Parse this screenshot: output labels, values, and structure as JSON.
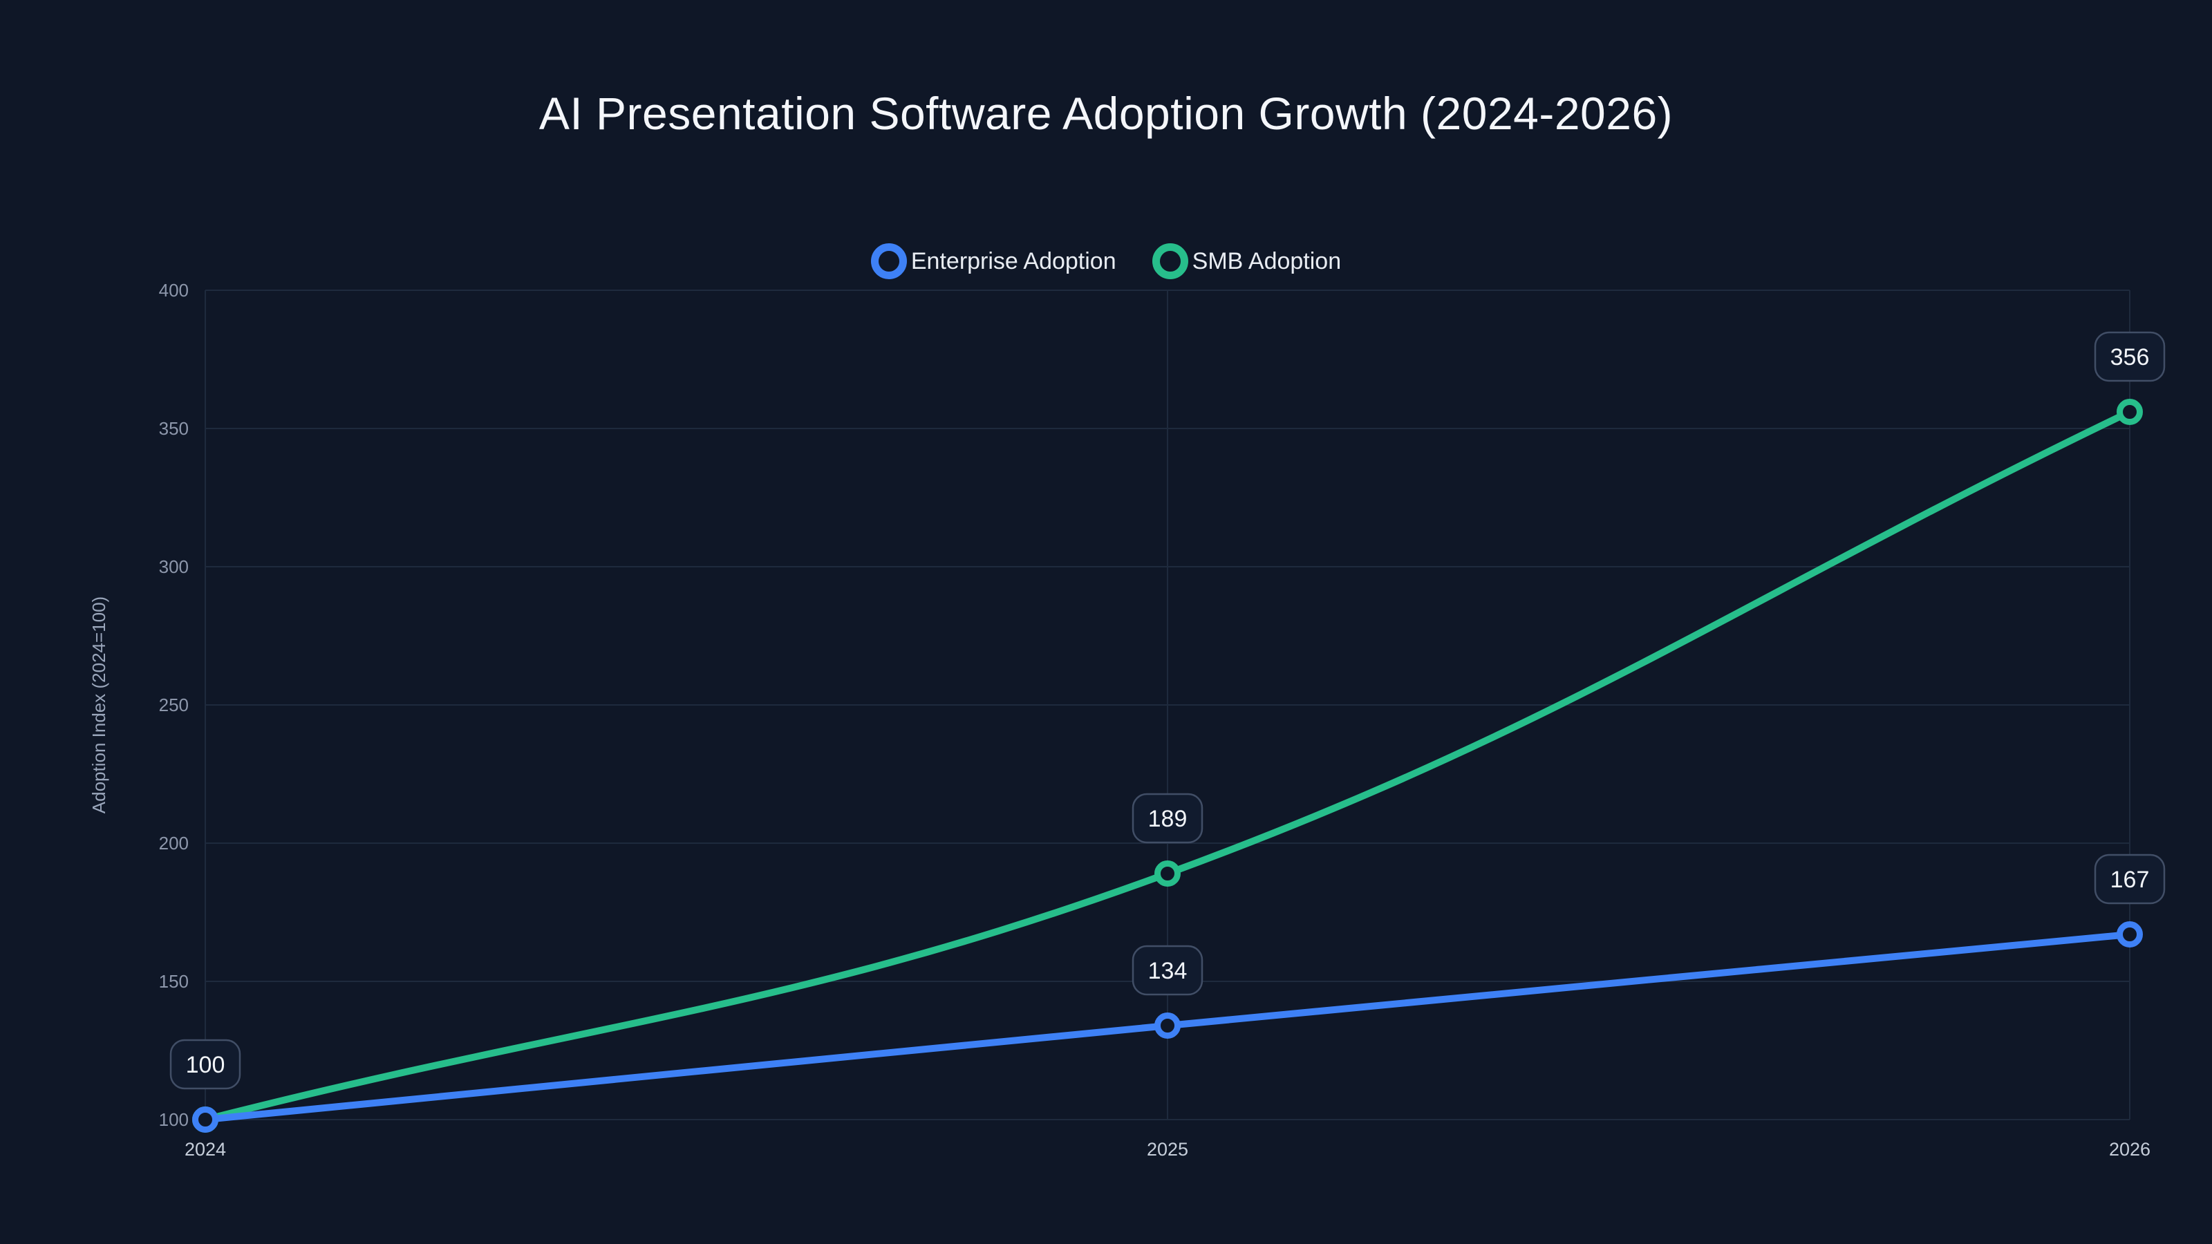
{
  "title": "AI Presentation Software Adoption Growth (2024-2026)",
  "colors": {
    "background": "#0f1727",
    "grid": "#1e2a3d",
    "enterprise": "#3e81f6",
    "smb": "#27be8b",
    "label_box_fill": "#111b2e",
    "label_box_border": "#414e66",
    "label_text": "#f2f5f9",
    "x_tick_text": "#c6ceda",
    "y_tick_text": "#8d97ab",
    "axis_title_text": "#9aa6bb",
    "title_text": "#f4f6fa",
    "legend_text": "#e9edf3"
  },
  "chart_data": {
    "type": "line",
    "title": "AI Presentation Software Adoption Growth (2024-2026)",
    "categories": [
      "2024",
      "2025",
      "2026"
    ],
    "series": [
      {
        "name": "Enterprise Adoption",
        "color_key": "enterprise",
        "values": [
          100,
          134,
          167
        ]
      },
      {
        "name": "SMB Adoption",
        "color_key": "smb",
        "values": [
          100,
          189,
          356
        ]
      }
    ],
    "data_labels": [
      "100",
      "134",
      "167",
      "189",
      "356"
    ],
    "xlabel": "",
    "ylabel": "Adoption Index (2024=100)",
    "ylim": [
      100,
      400
    ],
    "yticks": [
      100,
      150,
      200,
      250,
      300,
      350,
      400
    ],
    "grid": true,
    "legend_position": "top-center",
    "line_style": "smooth",
    "marker": "open-circle"
  }
}
